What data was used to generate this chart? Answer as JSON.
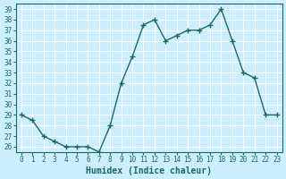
{
  "x": [
    0,
    1,
    2,
    3,
    4,
    5,
    6,
    7,
    8,
    9,
    10,
    11,
    12,
    13,
    14,
    15,
    16,
    17,
    18,
    19,
    20,
    21,
    22,
    23
  ],
  "y": [
    29,
    28.5,
    27,
    26.5,
    26,
    26,
    26,
    25.5,
    28,
    32,
    34.5,
    37.5,
    38,
    36,
    36.5,
    37,
    37,
    37.5,
    39,
    36,
    33,
    32.5,
    29,
    29
  ],
  "xlabel": "Humidex (Indice chaleur)",
  "ylim": [
    25.5,
    39.5
  ],
  "xlim": [
    -0.5,
    23.5
  ],
  "yticks": [
    26,
    27,
    28,
    29,
    30,
    31,
    32,
    33,
    34,
    35,
    36,
    37,
    38,
    39
  ],
  "xticks": [
    0,
    1,
    2,
    3,
    4,
    5,
    6,
    7,
    8,
    9,
    10,
    11,
    12,
    13,
    14,
    15,
    16,
    17,
    18,
    19,
    20,
    21,
    22,
    23
  ],
  "line_color": "#1a6b5e",
  "bg_color": "#cceeff",
  "grid_color": "#ffffff",
  "tick_color": "#1a6b5e",
  "label_color": "#1a6b5e"
}
